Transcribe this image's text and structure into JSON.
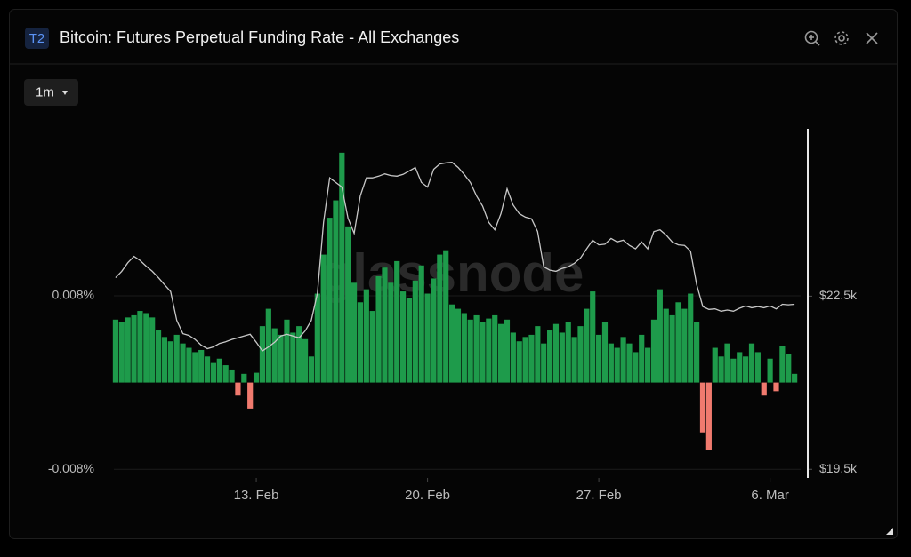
{
  "header": {
    "badge": "T2"
  },
  "controls": {
    "resolution": "1m"
  },
  "watermark": "glassnode",
  "chart_data": {
    "type": "bar",
    "title": "Bitcoin: Futures Perpetual Funding Rate - All Exchanges",
    "x": [
      7.25,
      7.5,
      7.75,
      8,
      8.25,
      8.5,
      8.75,
      9,
      9.25,
      9.5,
      9.75,
      10,
      10.25,
      10.5,
      10.75,
      11,
      11.25,
      11.5,
      11.75,
      12,
      12.25,
      12.5,
      12.75,
      13,
      13.25,
      13.5,
      13.75,
      14,
      14.25,
      14.5,
      14.75,
      15,
      15.25,
      15.5,
      15.75,
      16,
      16.25,
      16.5,
      16.75,
      17,
      17.25,
      17.5,
      17.75,
      18,
      18.25,
      18.5,
      18.75,
      19,
      19.25,
      19.5,
      19.75,
      20,
      20.25,
      20.5,
      20.75,
      21,
      21.25,
      21.5,
      21.75,
      22,
      22.25,
      22.5,
      22.75,
      23,
      23.25,
      23.5,
      23.75,
      24,
      24.25,
      24.5,
      24.75,
      25,
      25.25,
      25.5,
      25.75,
      26,
      26.25,
      26.5,
      26.75,
      27,
      27.25,
      27.5,
      27.75,
      28,
      28.25,
      28.5,
      28.75,
      29,
      29.25,
      29.5,
      29.75,
      30,
      30.25,
      30.5,
      30.75,
      31,
      31.25,
      31.5,
      31.75,
      32,
      32.25,
      32.5,
      32.75,
      33,
      33.25,
      33.5,
      33.75,
      34,
      34.25,
      34.5,
      34.75,
      35
    ],
    "series": [
      {
        "type": "bar",
        "color": "#1e9b4b",
        "negative_color": "#f07a6e",
        "values": [
          0.0058,
          0.0056,
          0.006,
          0.0062,
          0.0066,
          0.0064,
          0.006,
          0.0048,
          0.0042,
          0.0038,
          0.0044,
          0.0036,
          0.0032,
          0.0028,
          0.003,
          0.0024,
          0.0018,
          0.0022,
          0.0016,
          0.0012,
          -0.0012,
          0.0008,
          -0.0024,
          0.0009,
          0.0052,
          0.0068,
          0.005,
          0.0044,
          0.0058,
          0.0046,
          0.0052,
          0.004,
          0.0024,
          0.0082,
          0.0118,
          0.0152,
          0.0168,
          0.0212,
          0.0144,
          0.0092,
          0.0074,
          0.0086,
          0.0066,
          0.0098,
          0.0106,
          0.0092,
          0.0112,
          0.0084,
          0.0078,
          0.0094,
          0.0108,
          0.0082,
          0.0096,
          0.0118,
          0.0122,
          0.0072,
          0.0068,
          0.0064,
          0.0058,
          0.0062,
          0.0056,
          0.0059,
          0.0062,
          0.0054,
          0.0058,
          0.0046,
          0.0038,
          0.0042,
          0.0044,
          0.0052,
          0.0036,
          0.0048,
          0.0054,
          0.0046,
          0.0056,
          0.0042,
          0.0052,
          0.0068,
          0.0084,
          0.0044,
          0.0056,
          0.0036,
          0.0032,
          0.0042,
          0.0036,
          0.0028,
          0.0044,
          0.0032,
          0.0058,
          0.0086,
          0.0068,
          0.0062,
          0.0074,
          0.0068,
          0.0082,
          0.0056,
          -0.0046,
          -0.0062,
          0.0032,
          0.0024,
          0.0036,
          0.0022,
          0.0028,
          0.0024,
          0.0036,
          0.0028,
          -0.0012,
          0.0022,
          -0.0008,
          0.0034,
          0.0026,
          0.0008
        ]
      },
      {
        "type": "line",
        "axis": "y2",
        "color": "#c8c8c8",
        "values": [
          22820,
          22930,
          23080,
          23190,
          23120,
          23020,
          22930,
          22820,
          22700,
          22580,
          22080,
          21850,
          21820,
          21750,
          21650,
          21590,
          21620,
          21680,
          21710,
          21750,
          21780,
          21810,
          21840,
          21700,
          21550,
          21620,
          21700,
          21810,
          21840,
          21810,
          21780,
          21900,
          22080,
          22550,
          23780,
          24550,
          24470,
          24390,
          23850,
          23590,
          24240,
          24550,
          24550,
          24580,
          24620,
          24590,
          24580,
          24610,
          24670,
          24730,
          24470,
          24390,
          24700,
          24790,
          24810,
          24820,
          24730,
          24610,
          24470,
          24240,
          24060,
          23780,
          23650,
          23930,
          24360,
          24080,
          23930,
          23870,
          23840,
          23620,
          23010,
          22950,
          22930,
          22980,
          23010,
          23070,
          23160,
          23320,
          23470,
          23390,
          23400,
          23500,
          23440,
          23470,
          23380,
          23320,
          23440,
          23320,
          23620,
          23650,
          23560,
          23440,
          23390,
          23380,
          23280,
          22700,
          22320,
          22270,
          22280,
          22240,
          22260,
          22240,
          22290,
          22330,
          22300,
          22320,
          22300,
          22330,
          22280,
          22360,
          22350,
          22360
        ]
      }
    ],
    "xlim": [
      7.18,
      35.25
    ],
    "xticks": [
      {
        "value": 13,
        "label": "13. Feb"
      },
      {
        "value": 20,
        "label": "20. Feb"
      },
      {
        "value": 27,
        "label": "27. Feb"
      },
      {
        "value": 34,
        "label": "6. Mar"
      }
    ],
    "ylim": [
      -0.0088,
      0.0234
    ],
    "yticks": [
      {
        "value": -0.008,
        "label": "-0.008%"
      },
      {
        "value": 0.008,
        "label": "0.008%"
      }
    ],
    "y2lim": [
      19350,
      25400
    ],
    "y2ticks": [
      {
        "value": 19500,
        "label": "$19.5k"
      },
      {
        "value": 22500,
        "label": "$22.5k"
      }
    ],
    "grid": true
  }
}
